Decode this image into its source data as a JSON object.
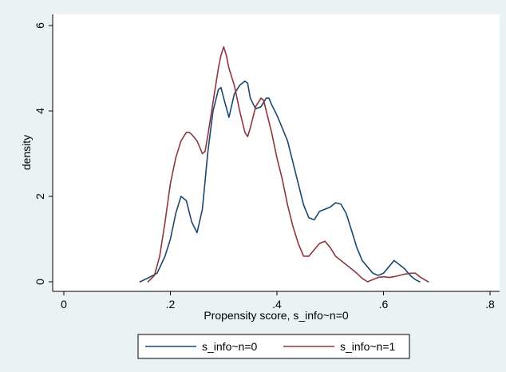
{
  "chart_data": {
    "type": "line",
    "xlabel": "Propensity score, s_info~n=0",
    "ylabel": "density",
    "xlim": [
      0,
      0.8
    ],
    "ylim": [
      0,
      6
    ],
    "x_ticks": [
      0,
      0.2,
      0.4,
      0.6,
      0.8
    ],
    "x_tick_labels": [
      "0",
      ".2",
      ".4",
      ".6",
      ".8"
    ],
    "y_ticks": [
      0,
      2,
      4,
      6
    ],
    "y_tick_labels": [
      "0",
      "2",
      "4",
      "6"
    ],
    "grid": false,
    "legend_position": "bottom",
    "series": [
      {
        "name": "s_info~n=0",
        "color": "#1a476f",
        "x": [
          0.143,
          0.16,
          0.175,
          0.19,
          0.2,
          0.21,
          0.22,
          0.23,
          0.24,
          0.25,
          0.26,
          0.27,
          0.28,
          0.29,
          0.295,
          0.3,
          0.31,
          0.32,
          0.33,
          0.34,
          0.345,
          0.35,
          0.36,
          0.37,
          0.38,
          0.385,
          0.39,
          0.4,
          0.41,
          0.42,
          0.43,
          0.44,
          0.45,
          0.46,
          0.47,
          0.48,
          0.49,
          0.5,
          0.51,
          0.52,
          0.53,
          0.54,
          0.55,
          0.56,
          0.57,
          0.58,
          0.59,
          0.6,
          0.61,
          0.62,
          0.63,
          0.64,
          0.65,
          0.66,
          0.668
        ],
        "y": [
          0.0,
          0.1,
          0.2,
          0.6,
          1.0,
          1.6,
          2.0,
          1.9,
          1.4,
          1.15,
          1.7,
          3.0,
          4.0,
          4.5,
          4.55,
          4.3,
          3.85,
          4.4,
          4.6,
          4.7,
          4.65,
          4.3,
          4.05,
          4.1,
          4.3,
          4.3,
          4.15,
          3.9,
          3.6,
          3.3,
          2.8,
          2.3,
          1.8,
          1.5,
          1.45,
          1.65,
          1.7,
          1.75,
          1.85,
          1.82,
          1.6,
          1.2,
          0.8,
          0.5,
          0.35,
          0.2,
          0.15,
          0.2,
          0.35,
          0.5,
          0.4,
          0.3,
          0.15,
          0.05,
          0.0
        ]
      },
      {
        "name": "s_info~n=1",
        "color": "#90353b",
        "x": [
          0.158,
          0.17,
          0.18,
          0.19,
          0.2,
          0.21,
          0.22,
          0.23,
          0.235,
          0.24,
          0.25,
          0.26,
          0.265,
          0.27,
          0.28,
          0.29,
          0.295,
          0.3,
          0.305,
          0.31,
          0.32,
          0.33,
          0.34,
          0.345,
          0.35,
          0.36,
          0.37,
          0.375,
          0.38,
          0.39,
          0.4,
          0.41,
          0.42,
          0.43,
          0.44,
          0.45,
          0.46,
          0.47,
          0.48,
          0.49,
          0.5,
          0.51,
          0.52,
          0.53,
          0.54,
          0.55,
          0.56,
          0.57,
          0.58,
          0.59,
          0.6,
          0.61,
          0.62,
          0.63,
          0.64,
          0.65,
          0.66,
          0.67,
          0.68,
          0.684
        ],
        "y": [
          0.0,
          0.15,
          0.6,
          1.4,
          2.3,
          2.9,
          3.3,
          3.5,
          3.5,
          3.45,
          3.3,
          3.0,
          3.05,
          3.4,
          4.2,
          5.0,
          5.3,
          5.5,
          5.3,
          5.0,
          4.6,
          4.0,
          3.5,
          3.4,
          3.6,
          4.1,
          4.3,
          4.25,
          4.0,
          3.5,
          2.9,
          2.4,
          1.8,
          1.3,
          0.9,
          0.6,
          0.6,
          0.75,
          0.9,
          0.95,
          0.8,
          0.6,
          0.5,
          0.4,
          0.3,
          0.2,
          0.08,
          0.0,
          0.05,
          0.1,
          0.12,
          0.1,
          0.12,
          0.15,
          0.18,
          0.2,
          0.2,
          0.1,
          0.03,
          0.0
        ]
      }
    ]
  }
}
